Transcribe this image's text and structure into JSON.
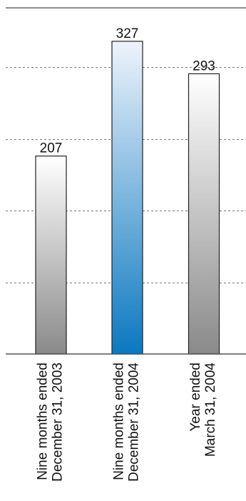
{
  "chart_data": {
    "type": "bar",
    "categories": [
      [
        "Nine months ended",
        "December 31, 2003"
      ],
      [
        "Nine months ended",
        "December 31, 2004"
      ],
      [
        "Year ended",
        "March 31, 2004"
      ]
    ],
    "values": [
      207,
      327,
      293
    ],
    "value_labels": [
      "207",
      "327",
      "293"
    ],
    "ylim": [
      0,
      375
    ],
    "grid": true,
    "grid_step": 75,
    "title": "",
    "xlabel": "",
    "ylabel": "",
    "colors": {
      "bar_gray_top": "#ffffff",
      "bar_gray_bottom": "#8a8a8a",
      "bar_blue_top": "#eef3fb",
      "bar_blue_bottom": "#0b78c0",
      "highlight_index": 1
    }
  }
}
